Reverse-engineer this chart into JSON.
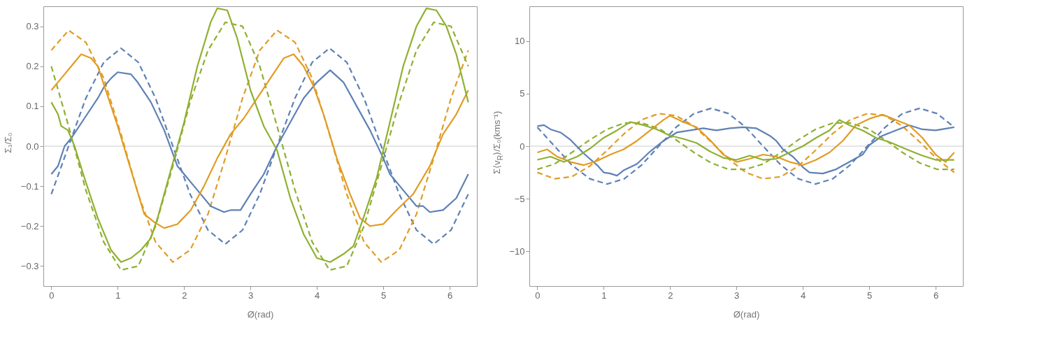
{
  "chart_data": [
    {
      "type": "line",
      "xlabel": "Ø(rad)",
      "ylabel": "Σ₁/Σ₀",
      "xlim": [
        -0.12,
        6.41
      ],
      "ylim": [
        -0.35,
        0.35
      ],
      "xticks": [
        0,
        1,
        2,
        3,
        4,
        5,
        6
      ],
      "yticks": [
        -0.3,
        -0.2,
        -0.1,
        {
          "value": 0,
          "label": "0.0"
        },
        0.1,
        0.2,
        0.3
      ],
      "ref_lines": [
        {
          "axis": "y",
          "value": 0,
          "color": "#cccccc"
        }
      ],
      "x": [
        0,
        0.26,
        0.52,
        0.79,
        1.05,
        1.31,
        1.57,
        1.83,
        2.09,
        2.36,
        2.62,
        2.88,
        3.14,
        3.4,
        3.67,
        3.93,
        4.19,
        4.45,
        4.71,
        4.97,
        5.24,
        5.5,
        5.76,
        6.02,
        6.28
      ],
      "series": [
        {
          "color": "#5e81b5",
          "line_style": "dashed",
          "values": [
            -0.12,
            0,
            0.12,
            0.21,
            0.245,
            0.21,
            0.12,
            0,
            -0.12,
            -0.21,
            -0.245,
            -0.21,
            -0.12,
            0,
            0.12,
            0.21,
            0.245,
            0.21,
            0.12,
            0,
            -0.12,
            -0.21,
            -0.245,
            -0.21,
            -0.12
          ]
        },
        {
          "color": "#e19c24",
          "line_style": "dashed",
          "values": [
            0.24,
            0.29,
            0.26,
            0.17,
            0.03,
            -0.12,
            -0.24,
            -0.29,
            -0.26,
            -0.17,
            -0.03,
            0.12,
            0.24,
            0.29,
            0.26,
            0.17,
            0.03,
            -0.12,
            -0.24,
            -0.29,
            -0.26,
            -0.17,
            -0.03,
            0.12,
            0.24
          ]
        },
        {
          "color": "#8fb032",
          "line_style": "dashed",
          "values": [
            0.2,
            0.05,
            -0.11,
            -0.24,
            -0.31,
            -0.3,
            -0.2,
            -0.05,
            0.11,
            0.24,
            0.31,
            0.3,
            0.2,
            0.05,
            -0.11,
            -0.24,
            -0.31,
            -0.3,
            -0.2,
            -0.05,
            0.11,
            0.24,
            0.31,
            0.3,
            0.2
          ]
        },
        {
          "color": "#5e81b5",
          "line_style": "solid",
          "x": [
            0,
            0.1,
            0.2,
            0.3,
            0.5,
            0.7,
            0.8,
            0.9,
            1.0,
            1.2,
            1.3,
            1.5,
            1.7,
            1.9,
            2.0,
            2.2,
            2.4,
            2.6,
            2.7,
            2.85,
            3.0,
            3.2,
            3.4,
            3.6,
            3.8,
            4.0,
            4.2,
            4.4,
            4.6,
            4.8,
            5.0,
            5.1,
            5.3,
            5.5,
            5.6,
            5.7,
            5.9,
            6.1,
            6.28
          ],
          "values": [
            -0.07,
            -0.05,
            0.0,
            0.02,
            0.07,
            0.12,
            0.15,
            0.17,
            0.185,
            0.18,
            0.16,
            0.11,
            0.04,
            -0.05,
            -0.07,
            -0.11,
            -0.15,
            -0.165,
            -0.16,
            -0.16,
            -0.12,
            -0.07,
            0.0,
            0.06,
            0.12,
            0.16,
            0.19,
            0.16,
            0.1,
            0.04,
            -0.03,
            -0.07,
            -0.11,
            -0.15,
            -0.15,
            -0.165,
            -0.16,
            -0.13,
            -0.07
          ]
        },
        {
          "color": "#e19c24",
          "line_style": "solid",
          "x": [
            0,
            0.15,
            0.3,
            0.45,
            0.6,
            0.7,
            0.8,
            1.0,
            1.2,
            1.4,
            1.55,
            1.7,
            1.9,
            2.1,
            2.3,
            2.5,
            2.7,
            2.9,
            3.1,
            3.3,
            3.5,
            3.65,
            3.8,
            3.95,
            4.1,
            4.3,
            4.5,
            4.65,
            4.8,
            5.0,
            5.2,
            5.45,
            5.7,
            5.9,
            6.1,
            6.28
          ],
          "values": [
            0.14,
            0.17,
            0.2,
            0.23,
            0.22,
            0.2,
            0.15,
            0.05,
            -0.06,
            -0.17,
            -0.19,
            -0.205,
            -0.195,
            -0.16,
            -0.1,
            -0.03,
            0.03,
            0.07,
            0.12,
            0.17,
            0.22,
            0.23,
            0.2,
            0.15,
            0.08,
            -0.03,
            -0.12,
            -0.18,
            -0.2,
            -0.195,
            -0.16,
            -0.12,
            -0.05,
            0.03,
            0.08,
            0.14
          ]
        },
        {
          "color": "#8fb032",
          "line_style": "solid",
          "x": [
            0,
            0.1,
            0.15,
            0.25,
            0.35,
            0.5,
            0.7,
            0.9,
            1.0,
            1.05,
            1.2,
            1.35,
            1.5,
            1.6,
            1.8,
            2.0,
            2.2,
            2.4,
            2.5,
            2.65,
            2.8,
            3.0,
            3.2,
            3.4,
            3.6,
            3.8,
            4.0,
            4.2,
            4.4,
            4.55,
            4.7,
            4.9,
            5.1,
            5.3,
            5.5,
            5.65,
            5.8,
            5.95,
            6.1,
            6.28
          ],
          "values": [
            0.11,
            0.08,
            0.05,
            0.04,
            0.0,
            -0.08,
            -0.18,
            -0.26,
            -0.28,
            -0.29,
            -0.28,
            -0.26,
            -0.23,
            -0.18,
            -0.06,
            0.06,
            0.2,
            0.31,
            0.345,
            0.34,
            0.27,
            0.14,
            0.05,
            -0.01,
            -0.13,
            -0.22,
            -0.28,
            -0.29,
            -0.27,
            -0.25,
            -0.18,
            -0.08,
            0.06,
            0.2,
            0.3,
            0.345,
            0.34,
            0.3,
            0.23,
            0.11
          ]
        }
      ]
    },
    {
      "type": "line",
      "xlabel": "Ø(rad)",
      "ylabel": "Σ⟨v$_{R}$⟩/Σ₀(kms⁻¹)",
      "xlim": [
        -0.12,
        6.41
      ],
      "ylim": [
        -13.3,
        13.3
      ],
      "xticks": [
        0,
        1,
        2,
        3,
        4,
        5,
        6
      ],
      "yticks": [
        -10,
        -5,
        0,
        5,
        10
      ],
      "ref_lines": [
        {
          "axis": "y",
          "value": 0,
          "color": "#cccccc"
        }
      ],
      "x": [
        0,
        0.26,
        0.52,
        0.79,
        1.05,
        1.31,
        1.57,
        1.83,
        2.09,
        2.36,
        2.62,
        2.88,
        3.14,
        3.4,
        3.67,
        3.93,
        4.19,
        4.45,
        4.71,
        4.97,
        5.24,
        5.5,
        5.76,
        6.02,
        6.28
      ],
      "series": [
        {
          "color": "#5e81b5",
          "line_style": "dashed",
          "values": [
            1.8,
            0,
            -1.8,
            -3.1,
            -3.6,
            -3.1,
            -1.8,
            0,
            1.8,
            3.1,
            3.6,
            3.1,
            1.8,
            0,
            -1.8,
            -3.1,
            -3.6,
            -3.1,
            -1.8,
            0,
            1.8,
            3.1,
            3.6,
            3.1,
            1.8
          ]
        },
        {
          "color": "#e19c24",
          "line_style": "dashed",
          "values": [
            -2.5,
            -3.1,
            -2.9,
            -1.9,
            -0.4,
            1.2,
            2.5,
            3.1,
            2.9,
            1.9,
            0.4,
            -1.2,
            -2.5,
            -3.1,
            -2.9,
            -1.9,
            -0.4,
            1.2,
            2.5,
            3.1,
            2.9,
            1.9,
            0.4,
            -1.2,
            -2.5
          ]
        },
        {
          "color": "#8fb032",
          "line_style": "dashed",
          "values": [
            -2.2,
            -1.7,
            -0.6,
            0.6,
            1.6,
            2.2,
            2.2,
            1.7,
            0.6,
            -0.6,
            -1.6,
            -2.2,
            -2.2,
            -1.7,
            -0.6,
            0.6,
            1.6,
            2.2,
            2.2,
            1.7,
            0.6,
            -0.6,
            -1.6,
            -2.2,
            -2.2
          ]
        },
        {
          "color": "#5e81b5",
          "line_style": "solid",
          "x": [
            0,
            0.1,
            0.2,
            0.35,
            0.5,
            0.7,
            0.9,
            1.0,
            1.1,
            1.2,
            1.3,
            1.5,
            1.7,
            1.9,
            2.1,
            2.3,
            2.5,
            2.7,
            2.9,
            3.1,
            3.3,
            3.5,
            3.6,
            3.7,
            3.85,
            4.0,
            4.1,
            4.3,
            4.5,
            4.7,
            4.9,
            5.0,
            5.2,
            5.4,
            5.6,
            5.8,
            6.0,
            6.28
          ],
          "values": [
            1.9,
            2.0,
            1.6,
            1.3,
            0.6,
            -0.7,
            -1.8,
            -2.5,
            -2.6,
            -2.8,
            -2.3,
            -1.7,
            -0.5,
            0.5,
            1.3,
            1.5,
            1.7,
            1.5,
            1.7,
            1.8,
            1.7,
            1.0,
            0.5,
            -0.3,
            -1.0,
            -2.0,
            -2.5,
            -2.6,
            -2.2,
            -1.5,
            -0.8,
            0.1,
            1.0,
            1.5,
            2.0,
            1.6,
            1.5,
            1.8
          ]
        },
        {
          "color": "#e19c24",
          "line_style": "solid",
          "x": [
            0,
            0.15,
            0.3,
            0.5,
            0.7,
            0.9,
            1.1,
            1.3,
            1.5,
            1.7,
            1.9,
            2.0,
            2.2,
            2.4,
            2.6,
            2.8,
            3.0,
            3.2,
            3.4,
            3.6,
            3.8,
            4.0,
            4.2,
            4.4,
            4.6,
            4.8,
            5.0,
            5.2,
            5.4,
            5.6,
            5.8,
            6.0,
            6.15,
            6.28
          ],
          "values": [
            -0.6,
            -0.3,
            -1.0,
            -1.5,
            -1.8,
            -1.4,
            -0.8,
            -0.3,
            0.5,
            1.5,
            2.5,
            2.9,
            2.3,
            1.8,
            0.6,
            -0.8,
            -1.5,
            -1.2,
            -0.8,
            -1.0,
            -1.5,
            -1.8,
            -1.3,
            -0.6,
            0.5,
            2.0,
            2.6,
            3.0,
            2.5,
            2.0,
            0.8,
            -0.8,
            -1.5,
            -0.6
          ]
        },
        {
          "color": "#8fb032",
          "line_style": "solid",
          "x": [
            0,
            0.2,
            0.4,
            0.6,
            0.8,
            1.0,
            1.2,
            1.4,
            1.6,
            1.8,
            2.0,
            2.2,
            2.4,
            2.6,
            2.8,
            3.0,
            3.2,
            3.4,
            3.6,
            3.8,
            4.0,
            4.2,
            4.4,
            4.55,
            4.7,
            4.9,
            5.1,
            5.3,
            5.6,
            5.8,
            6.0,
            6.28
          ],
          "values": [
            -1.3,
            -1.0,
            -1.5,
            -1.0,
            -0.2,
            0.8,
            1.5,
            2.3,
            2.0,
            1.6,
            1.0,
            0.7,
            0.3,
            -0.5,
            -1.1,
            -1.3,
            -0.9,
            -1.3,
            -1.2,
            -0.6,
            0.0,
            0.8,
            1.5,
            2.5,
            2.0,
            1.5,
            0.8,
            0.4,
            -0.4,
            -0.9,
            -1.3,
            -1.3
          ]
        }
      ]
    }
  ]
}
